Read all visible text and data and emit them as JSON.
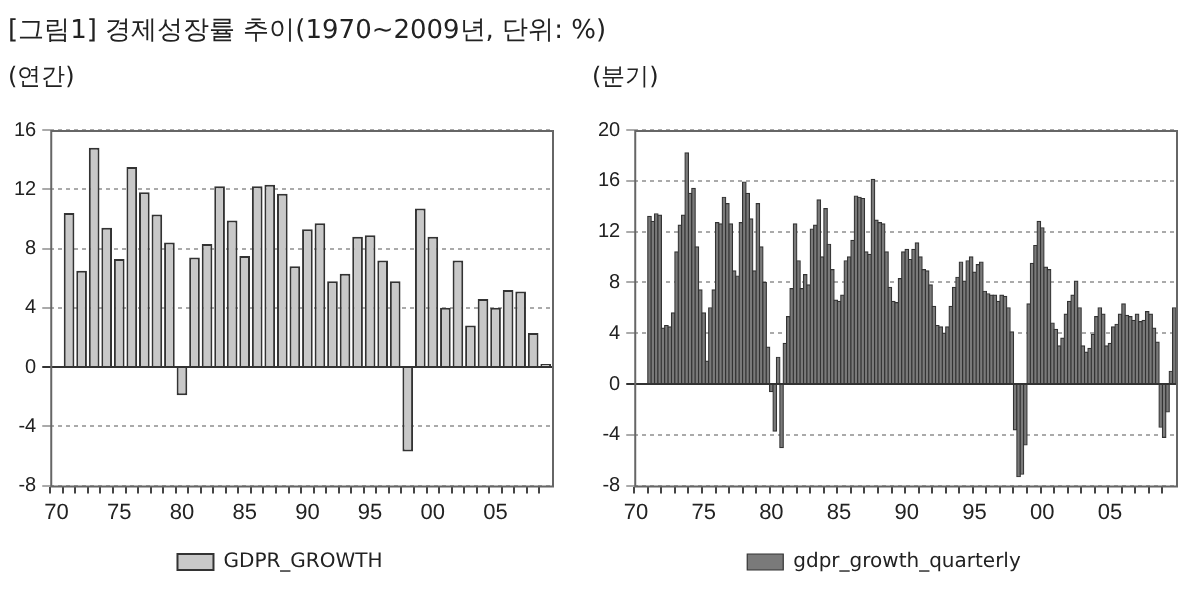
{
  "chart_data": [
    {
      "type": "bar",
      "title": "[그림1] 경제성장률 추이(1970~2009년, 단위: %)",
      "subtitle": "(연간)",
      "categories": [
        "70",
        null,
        null,
        null,
        null,
        "75",
        null,
        null,
        null,
        null,
        "80",
        null,
        null,
        null,
        null,
        "85",
        null,
        null,
        null,
        null,
        "90",
        null,
        null,
        null,
        null,
        "95",
        null,
        null,
        null,
        null,
        "00",
        null,
        null,
        null,
        null,
        "05",
        null,
        null,
        null,
        null
      ],
      "series": [
        {
          "name": "GDPR_GROWTH",
          "color": "#c8c8c8",
          "values": [
            null,
            10.4,
            6.5,
            14.8,
            9.4,
            7.3,
            13.5,
            11.8,
            10.3,
            8.4,
            -1.9,
            7.4,
            8.3,
            12.2,
            9.9,
            7.5,
            12.2,
            12.3,
            11.7,
            6.8,
            9.3,
            9.7,
            5.8,
            6.3,
            8.8,
            8.9,
            7.2,
            5.8,
            -5.7,
            10.7,
            8.8,
            4.0,
            7.2,
            2.8,
            4.6,
            4.0,
            5.2,
            5.1,
            2.3,
            0.2
          ]
        }
      ],
      "ylim": [
        -8,
        16
      ],
      "yticks": [
        -8,
        -4,
        0,
        4,
        8,
        12,
        16
      ],
      "grid": "y",
      "legend": "bottom"
    },
    {
      "type": "bar",
      "subtitle": "(분기)",
      "categories": [
        "70",
        null,
        null,
        null,
        null,
        null,
        null,
        null,
        null,
        null,
        null,
        null,
        null,
        null,
        null,
        null,
        null,
        null,
        null,
        null,
        "75",
        null,
        null,
        null,
        null,
        null,
        null,
        null,
        null,
        null,
        null,
        null,
        null,
        null,
        null,
        null,
        null,
        null,
        null,
        null,
        "80",
        null,
        null,
        null,
        null,
        null,
        null,
        null,
        null,
        null,
        null,
        null,
        null,
        null,
        null,
        null,
        null,
        null,
        null,
        null,
        "85",
        null,
        null,
        null,
        null,
        null,
        null,
        null,
        null,
        null,
        null,
        null,
        null,
        null,
        null,
        null,
        null,
        null,
        null,
        null,
        "90",
        null,
        null,
        null,
        null,
        null,
        null,
        null,
        null,
        null,
        null,
        null,
        null,
        null,
        null,
        null,
        null,
        null,
        null,
        null,
        "95",
        null,
        null,
        null,
        null,
        null,
        null,
        null,
        null,
        null,
        null,
        null,
        null,
        null,
        null,
        null,
        null,
        null,
        null,
        null,
        "00",
        null,
        null,
        null,
        null,
        null,
        null,
        null,
        null,
        null,
        null,
        null,
        null,
        null,
        null,
        null,
        null,
        null,
        null,
        null,
        "05",
        null,
        null,
        null,
        null,
        null,
        null,
        null,
        null,
        null,
        null,
        null,
        null,
        null,
        null,
        null,
        null,
        null,
        null,
        null
      ],
      "series": [
        {
          "name": "gdpr_growth_quarterly",
          "color": "#7a7a7a",
          "values": [
            null,
            null,
            null,
            null,
            13.2,
            12.8,
            13.4,
            13.3,
            4.4,
            4.6,
            4.5,
            5.6,
            10.4,
            12.5,
            13.3,
            18.2,
            15.0,
            15.4,
            10.8,
            7.4,
            5.6,
            1.8,
            6.0,
            7.4,
            12.7,
            12.6,
            14.7,
            14.2,
            12.6,
            8.9,
            8.5,
            12.7,
            15.9,
            15.0,
            13.0,
            8.9,
            14.2,
            10.8,
            8.0,
            2.9,
            -0.6,
            -3.7,
            2.1,
            -5.0,
            3.2,
            5.3,
            7.5,
            12.6,
            9.7,
            7.5,
            8.6,
            7.8,
            12.2,
            12.5,
            14.5,
            10.0,
            13.8,
            11.0,
            9.0,
            6.6,
            6.5,
            7.0,
            9.7,
            10.0,
            11.3,
            14.8,
            14.7,
            14.6,
            10.4,
            10.2,
            16.1,
            12.9,
            12.7,
            12.6,
            10.4,
            7.6,
            6.5,
            6.4,
            8.3,
            10.4,
            10.6,
            9.8,
            10.6,
            11.1,
            10.0,
            9.0,
            8.9,
            7.8,
            6.1,
            4.6,
            4.5,
            4.0,
            4.5,
            6.1,
            7.6,
            8.4,
            9.6,
            8.1,
            9.7,
            10.0,
            8.8,
            9.4,
            9.6,
            7.3,
            7.1,
            7.0,
            7.0,
            6.5,
            7.0,
            6.9,
            6.0,
            4.1,
            -3.6,
            -7.3,
            -7.1,
            -4.8,
            6.3,
            9.5,
            10.9,
            12.8,
            12.3,
            9.2,
            9.0,
            4.8,
            4.3,
            3.0,
            3.6,
            5.5,
            6.5,
            7.0,
            8.1,
            6.0,
            3.0,
            2.5,
            2.8,
            3.9,
            5.3,
            6.0,
            5.5,
            3.0,
            3.2,
            4.5,
            4.7,
            5.5,
            6.3,
            5.4,
            5.3,
            5.0,
            5.5,
            4.9,
            5.0,
            5.7,
            5.5,
            4.4,
            3.3,
            -3.4,
            -4.2,
            -2.2,
            1.0,
            6.0
          ]
        }
      ],
      "ylim": [
        -8,
        20
      ],
      "yticks": [
        -8,
        -4,
        0,
        4,
        8,
        12,
        16,
        20
      ],
      "grid": "y",
      "legend": "bottom"
    }
  ]
}
